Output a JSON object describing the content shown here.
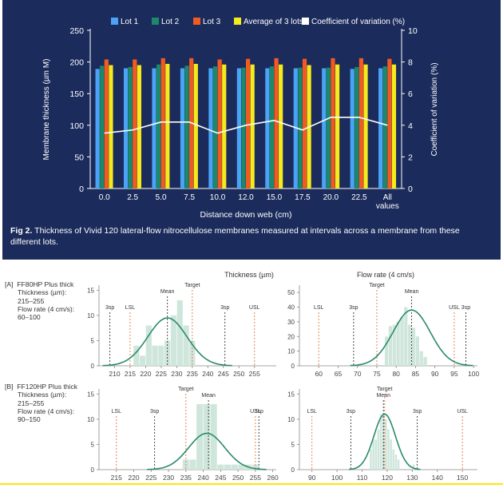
{
  "top": {
    "caption_bold": "Fig 2.",
    "caption_text": " Thickness of Vivid 120 lateral-flow nitrocellulose membranes measured at intervals across a membrane from these different lots."
  },
  "colors": {
    "panel_bg": "#1b2b5c",
    "lot1": "#4aa3f5",
    "lot2": "#1b8a6b",
    "lot3": "#f25a22",
    "average": "#f5ea1c",
    "cv": "#ffffff",
    "hist_bar": "#cfe6dc",
    "curve": "#2a8a6a",
    "limit_line": "#e07a40",
    "mean_line": "#333333"
  },
  "chart_data": [
    {
      "type": "bar",
      "categories": [
        "0.0",
        "2.5",
        "5.0",
        "7.5",
        "10.0",
        "12.0",
        "15.0",
        "17.5",
        "20.0",
        "22.5",
        "All values"
      ],
      "series": [
        {
          "name": "Lot 1",
          "values": [
            189,
            190,
            190,
            190,
            190,
            190,
            190,
            190,
            190,
            189,
            190
          ]
        },
        {
          "name": "Lot 2",
          "values": [
            194,
            192,
            196,
            194,
            193,
            191,
            193,
            191,
            191,
            192,
            193
          ]
        },
        {
          "name": "Lot 3",
          "values": [
            204,
            204,
            206,
            206,
            204,
            205,
            206,
            205,
            206,
            206,
            205
          ]
        },
        {
          "name": "Average of 3 lots",
          "values": [
            195,
            195,
            197,
            197,
            196,
            196,
            196,
            195,
            196,
            196,
            196
          ]
        }
      ],
      "line_series": {
        "name": "Coefficient of variation (%)",
        "values": [
          3.5,
          3.7,
          4.2,
          4.2,
          3.5,
          4.0,
          4.3,
          3.7,
          4.5,
          4.5,
          4.0
        ]
      },
      "xlabel": "Distance down web (cm)",
      "ylabel": "Membrane thickness (µm M)",
      "ylabel_right": "Coefficient of variation (%)",
      "ylim": [
        0,
        250
      ],
      "ylim_right": [
        0,
        10
      ],
      "yticks": [
        "0",
        "50",
        "100",
        "150",
        "200",
        "250"
      ],
      "yticks_right": [
        "0",
        "2",
        "4",
        "6",
        "8",
        "10"
      ],
      "legend": "top"
    },
    {
      "id": "a-thickness",
      "type": "bar",
      "subtitle": "Thickness (µm)",
      "bins_start": 216,
      "bin_width": 2,
      "values": [
        4,
        2,
        8,
        4,
        4,
        5,
        10,
        13,
        8,
        5
      ],
      "curve": {
        "mean": 227,
        "sd": 6.3,
        "peak": 9.5
      },
      "markers": [
        {
          "label": "3sp",
          "x": 208.5,
          "kind": "dashed"
        },
        {
          "label": "LSL",
          "x": 215,
          "kind": "limit"
        },
        {
          "label": "Mean",
          "x": 227,
          "kind": "dashed"
        },
        {
          "label": "Target",
          "x": 235,
          "kind": "limit"
        },
        {
          "label": "3sp",
          "x": 245.5,
          "kind": "dashed"
        },
        {
          "label": "USL",
          "x": 255,
          "kind": "limit"
        }
      ],
      "xlim": [
        205,
        262
      ],
      "ylim": [
        0,
        16
      ],
      "xticks": [
        "210",
        "215",
        "220",
        "225",
        "230",
        "235",
        "240",
        "245",
        "250",
        "255"
      ]
    },
    {
      "id": "a-flow",
      "type": "bar",
      "subtitle": "Flow rate (4 cm/s)",
      "bins_start": 77,
      "bin_width": 1,
      "values": [
        20,
        27,
        28,
        30,
        33,
        40,
        28,
        26,
        20,
        10,
        6
      ],
      "curve": {
        "mean": 84,
        "sd": 4.8,
        "peak": 38
      },
      "markers": [
        {
          "label": "LSL",
          "x": 60,
          "kind": "limit"
        },
        {
          "label": "3sp",
          "x": 69,
          "kind": "dashed"
        },
        {
          "label": "Target",
          "x": 75,
          "kind": "limit"
        },
        {
          "label": "Mean",
          "x": 84,
          "kind": "dashed"
        },
        {
          "label": "USL",
          "x": 95,
          "kind": "limit"
        },
        {
          "label": "3sp",
          "x": 98,
          "kind": "dashed"
        }
      ],
      "xlim": [
        55,
        101
      ],
      "ylim": [
        0,
        55
      ],
      "xticks": [
        "60",
        "65",
        "70",
        "75",
        "80",
        "85",
        "90",
        "95",
        "100"
      ]
    },
    {
      "id": "b-thickness",
      "type": "bar",
      "subtitle": "",
      "bins_start": 234,
      "bin_width": 2,
      "values": [
        2,
        2,
        13,
        13,
        13,
        1,
        1,
        1,
        1,
        1,
        1
      ],
      "curve": {
        "mean": 241,
        "sd": 5.2,
        "peak": 7.2
      },
      "markers": [
        {
          "label": "LSL",
          "x": 215,
          "kind": "limit"
        },
        {
          "label": "3sp",
          "x": 226,
          "kind": "dashed"
        },
        {
          "label": "Target",
          "x": 235,
          "kind": "limit"
        },
        {
          "label": "Mean",
          "x": 241.5,
          "kind": "dashed"
        },
        {
          "label": "USL",
          "x": 255,
          "kind": "limit"
        },
        {
          "label": "3sp",
          "x": 256,
          "kind": "dashed"
        }
      ],
      "xlim": [
        210,
        261
      ],
      "ylim": [
        0,
        16
      ],
      "xticks": [
        "215",
        "220",
        "225",
        "230",
        "235",
        "240",
        "245",
        "250",
        "255",
        "260"
      ]
    },
    {
      "id": "b-flow",
      "type": "bar",
      "subtitle": "",
      "bins_start": 113,
      "bin_width": 1,
      "values": [
        4,
        6,
        6,
        8,
        11,
        11,
        10,
        8,
        6,
        4,
        3,
        2,
        0,
        0,
        0,
        0,
        0,
        1
      ],
      "curve": {
        "mean": 119,
        "sd": 4.3,
        "peak": 11
      },
      "markers": [
        {
          "label": "LSL",
          "x": 90,
          "kind": "limit"
        },
        {
          "label": "3sp",
          "x": 105.5,
          "kind": "dashed"
        },
        {
          "label": "Target",
          "x": 119,
          "kind": "limit"
        },
        {
          "label": "Mean",
          "x": 118.5,
          "kind": "dashed"
        },
        {
          "label": "3sp",
          "x": 132,
          "kind": "dashed"
        },
        {
          "label": "USL",
          "x": 150,
          "kind": "limit"
        }
      ],
      "xlim": [
        85,
        156
      ],
      "ylim": [
        0,
        16
      ],
      "xticks": [
        "90",
        "100",
        "110",
        "120",
        "130",
        "140",
        "150"
      ]
    }
  ],
  "rows": [
    {
      "tag": "[A]",
      "name": "FF80HP Plus thick",
      "thickness_label": "Thickness (µm):",
      "thickness_range": "215–255",
      "flow_label": "Flow rate (4 cm/s):",
      "flow_range": "60–100"
    },
    {
      "tag": "[B]",
      "name": "FF120HP Plus thick",
      "thickness_label": "Thickness (µm):",
      "thickness_range": "215–255",
      "flow_label": "Flow rate (4 cm/s):",
      "flow_range": "90–150"
    }
  ],
  "yticks": {
    "a-thickness": [
      "0",
      "5",
      "10",
      "15"
    ],
    "a-flow": [
      "0",
      "10",
      "20",
      "30",
      "40",
      "50"
    ],
    "b-thickness": [
      "0",
      "5",
      "10",
      "15"
    ],
    "b-flow": [
      "0",
      "5",
      "10",
      "15"
    ]
  }
}
